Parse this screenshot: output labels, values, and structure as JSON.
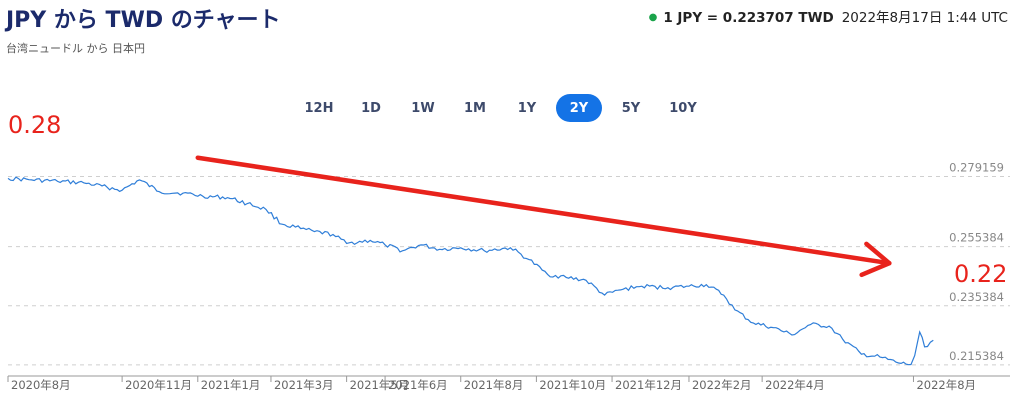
{
  "header": {
    "title": "JPY から TWD のチャート",
    "subtitle": "台湾ニュードル から 日本円",
    "rate_pair": "1 JPY = 0.223707 TWD",
    "timestamp": "2022年8月17日 1:44 UTC",
    "live_color": "#1aa34a"
  },
  "ranges": [
    {
      "label": "12H",
      "active": false
    },
    {
      "label": "1D",
      "active": false
    },
    {
      "label": "1W",
      "active": false
    },
    {
      "label": "1M",
      "active": false
    },
    {
      "label": "1Y",
      "active": false
    },
    {
      "label": "2Y",
      "active": true
    },
    {
      "label": "5Y",
      "active": false
    },
    {
      "label": "10Y",
      "active": false
    }
  ],
  "annotations": {
    "start_label": "0.28",
    "end_label": "0.22",
    "color": "#e8231c",
    "arrow": {
      "from": [
        "2021-01-01",
        0.2855
      ],
      "to": [
        "2022-08-17",
        0.2525
      ]
    }
  },
  "chart_data": {
    "type": "line",
    "title": "",
    "xlabel": "",
    "ylabel": "",
    "line_color": "#2f7ed8",
    "grid": "horizontal-dashed",
    "xlim": [
      "2020-08-01",
      "2022-08-24"
    ],
    "ylim": [
      0.2133,
      0.2915
    ],
    "y_ticks": [
      {
        "value": 0.279159,
        "label": "0.279159"
      },
      {
        "value": 0.255384,
        "label": "0.255384"
      },
      {
        "value": 0.235384,
        "label": "0.235384"
      },
      {
        "value": 0.215384,
        "label": "0.215384"
      }
    ],
    "x_ticks": [
      {
        "date": "2020-08-01",
        "label": "2020年8月"
      },
      {
        "date": "2020-11-01",
        "label": "2020年11月"
      },
      {
        "date": "2021-01-01",
        "label": "2021年1月"
      },
      {
        "date": "2021-03-01",
        "label": "2021年3月"
      },
      {
        "date": "2021-05-01",
        "label": "2021年5月"
      },
      {
        "date": "2021-06-01",
        "label": "2021年6月"
      },
      {
        "date": "2021-08-01",
        "label": "2021年8月"
      },
      {
        "date": "2021-10-01",
        "label": "2021年10月"
      },
      {
        "date": "2021-12-01",
        "label": "2021年12月"
      },
      {
        "date": "2022-02-01",
        "label": "2022年2月"
      },
      {
        "date": "2022-04-01",
        "label": "2022年4月"
      },
      {
        "date": "2022-08-01",
        "label": "2022年8月"
      }
    ],
    "series": [
      {
        "points": [
          [
            "2020-08-01",
            0.2785
          ],
          [
            "2020-08-20",
            0.278
          ],
          [
            "2020-09-10",
            0.2775
          ],
          [
            "2020-10-01",
            0.277
          ],
          [
            "2020-10-20",
            0.2755
          ],
          [
            "2020-11-01",
            0.2745
          ],
          [
            "2020-11-15",
            0.278
          ],
          [
            "2020-12-01",
            0.274
          ],
          [
            "2020-12-20",
            0.2735
          ],
          [
            "2021-01-05",
            0.2725
          ],
          [
            "2021-01-25",
            0.272
          ],
          [
            "2021-02-10",
            0.27
          ],
          [
            "2021-02-25",
            0.268
          ],
          [
            "2021-03-10",
            0.263
          ],
          [
            "2021-03-25",
            0.2615
          ],
          [
            "2021-04-05",
            0.2605
          ],
          [
            "2021-04-20",
            0.2595
          ],
          [
            "2021-05-01",
            0.2565
          ],
          [
            "2021-05-20",
            0.2575
          ],
          [
            "2021-06-01",
            0.256
          ],
          [
            "2021-06-15",
            0.254
          ],
          [
            "2021-06-30",
            0.256
          ],
          [
            "2021-07-15",
            0.2545
          ],
          [
            "2021-08-01",
            0.255
          ],
          [
            "2021-08-20",
            0.254
          ],
          [
            "2021-09-10",
            0.255
          ],
          [
            "2021-09-25",
            0.251
          ],
          [
            "2021-10-10",
            0.246
          ],
          [
            "2021-10-25",
            0.245
          ],
          [
            "2021-11-10",
            0.244
          ],
          [
            "2021-11-25",
            0.239
          ],
          [
            "2021-12-10",
            0.241
          ],
          [
            "2021-12-25",
            0.242
          ],
          [
            "2022-01-15",
            0.2415
          ],
          [
            "2022-02-01",
            0.242
          ],
          [
            "2022-02-15",
            0.2425
          ],
          [
            "2022-03-01",
            0.239
          ],
          [
            "2022-03-10",
            0.234
          ],
          [
            "2022-03-25",
            0.2295
          ],
          [
            "2022-04-10",
            0.228
          ],
          [
            "2022-04-25",
            0.2255
          ],
          [
            "2022-05-10",
            0.229
          ],
          [
            "2022-05-25",
            0.2285
          ],
          [
            "2022-06-05",
            0.224
          ],
          [
            "2022-06-20",
            0.219
          ],
          [
            "2022-07-05",
            0.218
          ],
          [
            "2022-07-20",
            0.216
          ],
          [
            "2022-07-30",
            0.2155
          ],
          [
            "2022-08-02",
            0.2185
          ],
          [
            "2022-08-06",
            0.2265
          ],
          [
            "2022-08-10",
            0.2215
          ],
          [
            "2022-08-17",
            0.2237
          ]
        ]
      }
    ]
  }
}
